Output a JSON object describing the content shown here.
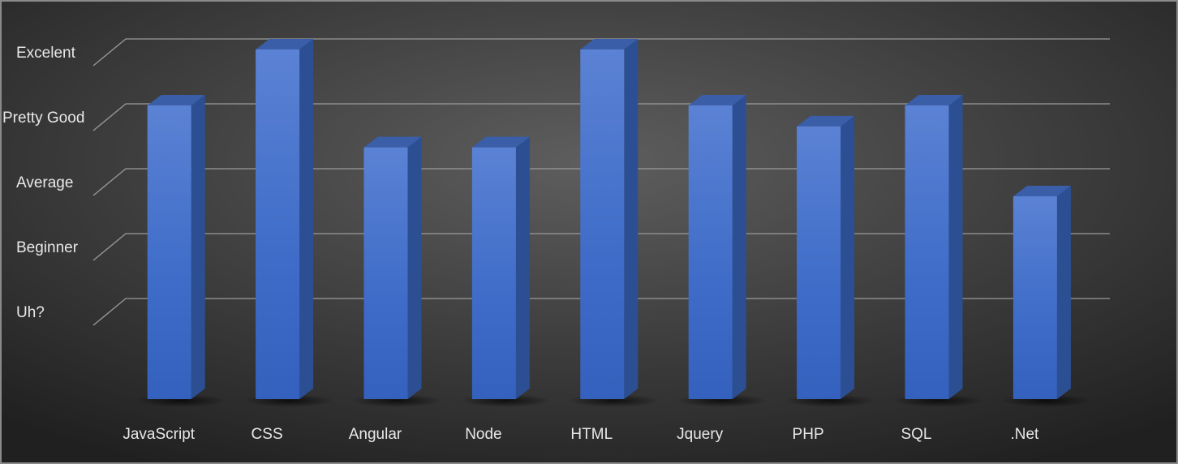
{
  "chart_data": {
    "type": "bar3d",
    "categories": [
      "JavaScript",
      "CSS",
      "Angular",
      "Node",
      "HTML",
      "Jquery",
      "PHP",
      "SQL",
      ".Net"
    ],
    "values": [
      4.2,
      5,
      3.6,
      3.6,
      5,
      4.2,
      3.9,
      4.2,
      2.9
    ],
    "color": "#4472c4",
    "ylim": [
      0,
      5
    ],
    "yticks": [
      {
        "value": 1,
        "label": "Uh?"
      },
      {
        "value": 2,
        "label": "Beginner"
      },
      {
        "value": 3,
        "label": "Average"
      },
      {
        "value": 4,
        "label": "Pretty Good"
      },
      {
        "value": 5,
        "label": "Excelent"
      }
    ],
    "grid": true
  }
}
